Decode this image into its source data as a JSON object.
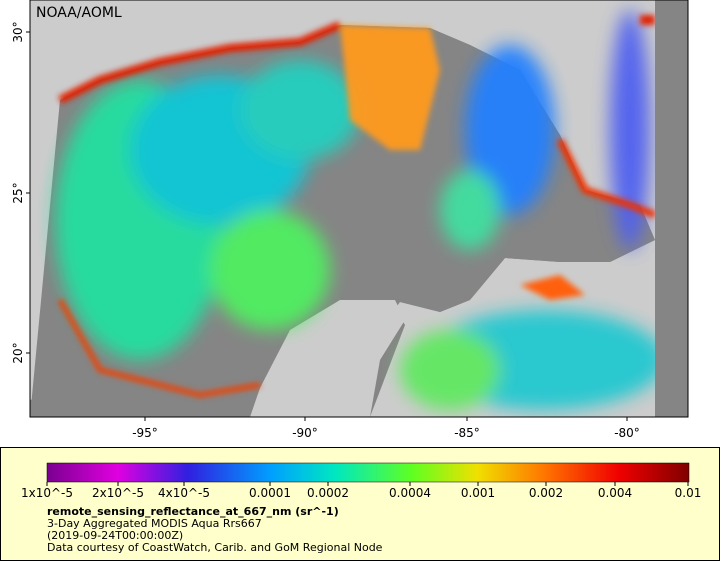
{
  "map": {
    "credit": "NOAA/AOML",
    "lat_labels": [
      "30°",
      "25°",
      "20°"
    ],
    "lon_labels": [
      "-95°",
      "-90°",
      "-85°",
      "-80°"
    ]
  },
  "legend": {
    "tick_labels": [
      "1x10^-5",
      "2x10^-5",
      "4x10^-5",
      "0.0001",
      "0.0002",
      "0.0004",
      "0.001",
      "0.002",
      "0.004",
      "0.01"
    ],
    "title": "remote_sensing_reflectance_at_667_nm (sr^-1)",
    "lines": [
      "3-Day Aggregated MODIS Aqua Rrs667",
      "(2019-09-24T00:00:00Z)",
      "Data courtesy of CoastWatch, Carib. and GoM Regional Node"
    ]
  }
}
